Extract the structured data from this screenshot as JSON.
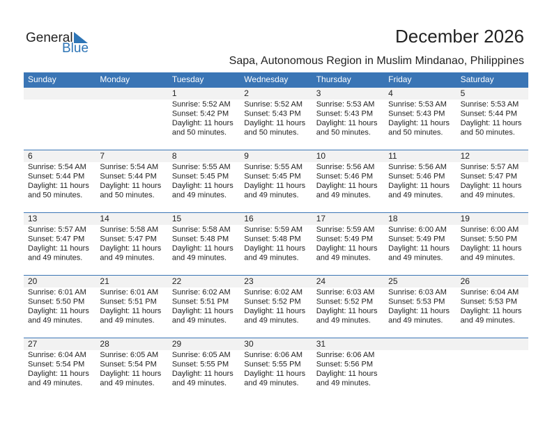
{
  "header": {
    "logo_general": "General",
    "logo_blue": "Blue",
    "title": "December 2026",
    "subtitle": "Sapa, Autonomous Region in Muslim Mindanao, Philippines"
  },
  "weekdays": [
    "Sunday",
    "Monday",
    "Tuesday",
    "Wednesday",
    "Thursday",
    "Friday",
    "Saturday"
  ],
  "weeks": [
    [
      null,
      null,
      {
        "day": 1,
        "sunrise": "Sunrise: 5:52 AM",
        "sunset": "Sunset: 5:42 PM",
        "daylight": "Daylight: 11 hours",
        "minutes": "and 50 minutes."
      },
      {
        "day": 2,
        "sunrise": "Sunrise: 5:52 AM",
        "sunset": "Sunset: 5:43 PM",
        "daylight": "Daylight: 11 hours",
        "minutes": "and 50 minutes."
      },
      {
        "day": 3,
        "sunrise": "Sunrise: 5:53 AM",
        "sunset": "Sunset: 5:43 PM",
        "daylight": "Daylight: 11 hours",
        "minutes": "and 50 minutes."
      },
      {
        "day": 4,
        "sunrise": "Sunrise: 5:53 AM",
        "sunset": "Sunset: 5:43 PM",
        "daylight": "Daylight: 11 hours",
        "minutes": "and 50 minutes."
      },
      {
        "day": 5,
        "sunrise": "Sunrise: 5:53 AM",
        "sunset": "Sunset: 5:44 PM",
        "daylight": "Daylight: 11 hours",
        "minutes": "and 50 minutes."
      }
    ],
    [
      {
        "day": 6,
        "sunrise": "Sunrise: 5:54 AM",
        "sunset": "Sunset: 5:44 PM",
        "daylight": "Daylight: 11 hours",
        "minutes": "and 50 minutes."
      },
      {
        "day": 7,
        "sunrise": "Sunrise: 5:54 AM",
        "sunset": "Sunset: 5:44 PM",
        "daylight": "Daylight: 11 hours",
        "minutes": "and 50 minutes."
      },
      {
        "day": 8,
        "sunrise": "Sunrise: 5:55 AM",
        "sunset": "Sunset: 5:45 PM",
        "daylight": "Daylight: 11 hours",
        "minutes": "and 49 minutes."
      },
      {
        "day": 9,
        "sunrise": "Sunrise: 5:55 AM",
        "sunset": "Sunset: 5:45 PM",
        "daylight": "Daylight: 11 hours",
        "minutes": "and 49 minutes."
      },
      {
        "day": 10,
        "sunrise": "Sunrise: 5:56 AM",
        "sunset": "Sunset: 5:46 PM",
        "daylight": "Daylight: 11 hours",
        "minutes": "and 49 minutes."
      },
      {
        "day": 11,
        "sunrise": "Sunrise: 5:56 AM",
        "sunset": "Sunset: 5:46 PM",
        "daylight": "Daylight: 11 hours",
        "minutes": "and 49 minutes."
      },
      {
        "day": 12,
        "sunrise": "Sunrise: 5:57 AM",
        "sunset": "Sunset: 5:47 PM",
        "daylight": "Daylight: 11 hours",
        "minutes": "and 49 minutes."
      }
    ],
    [
      {
        "day": 13,
        "sunrise": "Sunrise: 5:57 AM",
        "sunset": "Sunset: 5:47 PM",
        "daylight": "Daylight: 11 hours",
        "minutes": "and 49 minutes."
      },
      {
        "day": 14,
        "sunrise": "Sunrise: 5:58 AM",
        "sunset": "Sunset: 5:47 PM",
        "daylight": "Daylight: 11 hours",
        "minutes": "and 49 minutes."
      },
      {
        "day": 15,
        "sunrise": "Sunrise: 5:58 AM",
        "sunset": "Sunset: 5:48 PM",
        "daylight": "Daylight: 11 hours",
        "minutes": "and 49 minutes."
      },
      {
        "day": 16,
        "sunrise": "Sunrise: 5:59 AM",
        "sunset": "Sunset: 5:48 PM",
        "daylight": "Daylight: 11 hours",
        "minutes": "and 49 minutes."
      },
      {
        "day": 17,
        "sunrise": "Sunrise: 5:59 AM",
        "sunset": "Sunset: 5:49 PM",
        "daylight": "Daylight: 11 hours",
        "minutes": "and 49 minutes."
      },
      {
        "day": 18,
        "sunrise": "Sunrise: 6:00 AM",
        "sunset": "Sunset: 5:49 PM",
        "daylight": "Daylight: 11 hours",
        "minutes": "and 49 minutes."
      },
      {
        "day": 19,
        "sunrise": "Sunrise: 6:00 AM",
        "sunset": "Sunset: 5:50 PM",
        "daylight": "Daylight: 11 hours",
        "minutes": "and 49 minutes."
      }
    ],
    [
      {
        "day": 20,
        "sunrise": "Sunrise: 6:01 AM",
        "sunset": "Sunset: 5:50 PM",
        "daylight": "Daylight: 11 hours",
        "minutes": "and 49 minutes."
      },
      {
        "day": 21,
        "sunrise": "Sunrise: 6:01 AM",
        "sunset": "Sunset: 5:51 PM",
        "daylight": "Daylight: 11 hours",
        "minutes": "and 49 minutes."
      },
      {
        "day": 22,
        "sunrise": "Sunrise: 6:02 AM",
        "sunset": "Sunset: 5:51 PM",
        "daylight": "Daylight: 11 hours",
        "minutes": "and 49 minutes."
      },
      {
        "day": 23,
        "sunrise": "Sunrise: 6:02 AM",
        "sunset": "Sunset: 5:52 PM",
        "daylight": "Daylight: 11 hours",
        "minutes": "and 49 minutes."
      },
      {
        "day": 24,
        "sunrise": "Sunrise: 6:03 AM",
        "sunset": "Sunset: 5:52 PM",
        "daylight": "Daylight: 11 hours",
        "minutes": "and 49 minutes."
      },
      {
        "day": 25,
        "sunrise": "Sunrise: 6:03 AM",
        "sunset": "Sunset: 5:53 PM",
        "daylight": "Daylight: 11 hours",
        "minutes": "and 49 minutes."
      },
      {
        "day": 26,
        "sunrise": "Sunrise: 6:04 AM",
        "sunset": "Sunset: 5:53 PM",
        "daylight": "Daylight: 11 hours",
        "minutes": "and 49 minutes."
      }
    ],
    [
      {
        "day": 27,
        "sunrise": "Sunrise: 6:04 AM",
        "sunset": "Sunset: 5:54 PM",
        "daylight": "Daylight: 11 hours",
        "minutes": "and 49 minutes."
      },
      {
        "day": 28,
        "sunrise": "Sunrise: 6:05 AM",
        "sunset": "Sunset: 5:54 PM",
        "daylight": "Daylight: 11 hours",
        "minutes": "and 49 minutes."
      },
      {
        "day": 29,
        "sunrise": "Sunrise: 6:05 AM",
        "sunset": "Sunset: 5:55 PM",
        "daylight": "Daylight: 11 hours",
        "minutes": "and 49 minutes."
      },
      {
        "day": 30,
        "sunrise": "Sunrise: 6:06 AM",
        "sunset": "Sunset: 5:55 PM",
        "daylight": "Daylight: 11 hours",
        "minutes": "and 49 minutes."
      },
      {
        "day": 31,
        "sunrise": "Sunrise: 6:06 AM",
        "sunset": "Sunset: 5:56 PM",
        "daylight": "Daylight: 11 hours",
        "minutes": "and 49 minutes."
      },
      null,
      null
    ]
  ]
}
